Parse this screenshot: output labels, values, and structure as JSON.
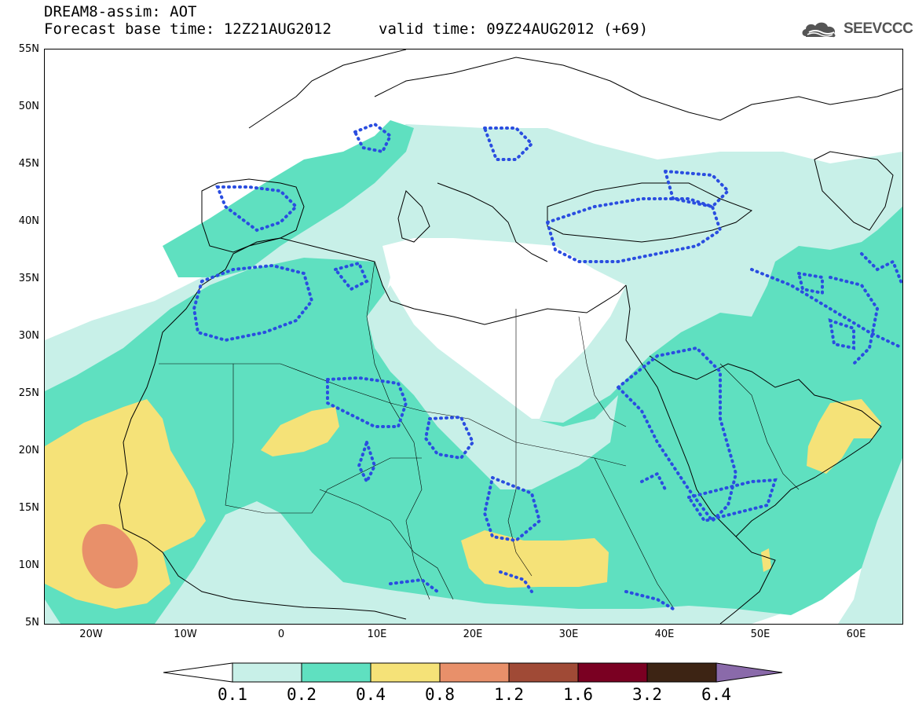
{
  "header": {
    "title": "DREAM8-assim: AOT",
    "base_time": "Forecast base time: 12Z21AUG2012",
    "valid_time": "valid time: 09Z24AUG2012 (+69)"
  },
  "logo": {
    "text": "SEEVCCC",
    "icon": "cloud-icon"
  },
  "map": {
    "lat_labels": [
      "55N",
      "50N",
      "45N",
      "40N",
      "35N",
      "30N",
      "25N",
      "20N",
      "15N",
      "10N",
      "5N"
    ],
    "lon_labels": [
      "20W",
      "10W",
      "0",
      "10E",
      "20E",
      "30E",
      "40E",
      "50E",
      "60E"
    ],
    "colors": {
      "c01": "#c8f0e8",
      "c02": "#5fe0c0",
      "c04": "#f5e278",
      "c08": "#e8906a",
      "dots": "#2a4de0"
    }
  },
  "colorbar": {
    "labels": [
      "0.1",
      "0.2",
      "0.4",
      "0.8",
      "1.2",
      "1.6",
      "3.2",
      "6.4"
    ],
    "colors": [
      "#c8f0e8",
      "#5fe0c0",
      "#f5e278",
      "#e8906a",
      "#a04a36",
      "#7a0022",
      "#3d2414",
      "#8a6aaa"
    ]
  }
}
